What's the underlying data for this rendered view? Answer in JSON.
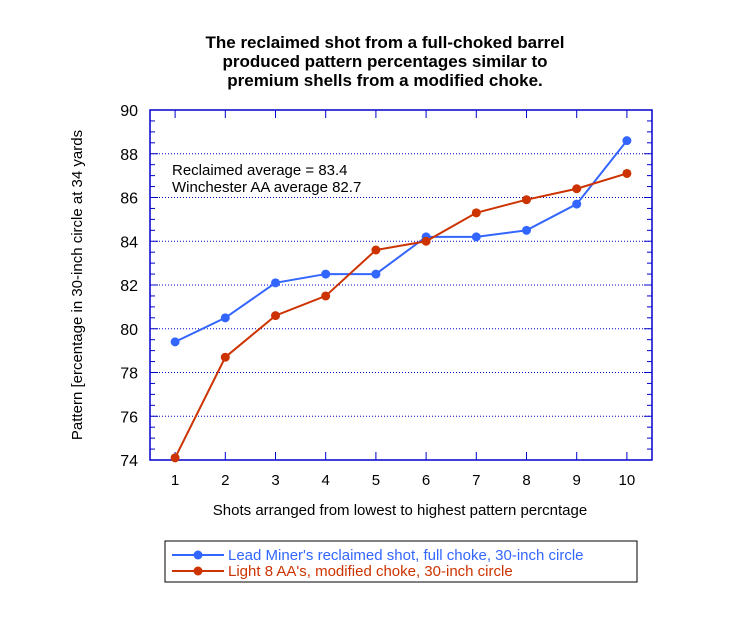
{
  "chart_data": {
    "type": "line",
    "title": [
      "The reclaimed shot from a full-choked barrel",
      "produced pattern percentages similar to",
      "premium shells from a modified choke."
    ],
    "xlabel": "Shots arranged from lowest to highest pattern percntage",
    "ylabel": "Pattern [ercentage in 30-inch circle at 34 yards",
    "x": [
      1,
      2,
      3,
      4,
      5,
      6,
      7,
      8,
      9,
      10
    ],
    "xlim": [
      0.5,
      10.5
    ],
    "ylim": [
      74,
      90
    ],
    "yticks": [
      74,
      76,
      78,
      80,
      82,
      84,
      86,
      88,
      90
    ],
    "grid": "horizontal dotted at major y ticks",
    "annotations": [
      "Reclaimed average = 83.4",
      "Winchester AA average 82.7"
    ],
    "legend_placement": "bottom",
    "series": [
      {
        "name": "Lead Miner's reclaimed shot, full choke, 30-inch circle",
        "color": "#3366ff",
        "values": [
          79.4,
          80.5,
          82.1,
          82.5,
          82.5,
          84.2,
          84.2,
          84.5,
          85.7,
          88.6
        ]
      },
      {
        "name": "Light 8 AA's, modified choke, 30-inch circle",
        "color": "#cc3300",
        "values": [
          74.1,
          78.7,
          80.6,
          81.5,
          83.6,
          84.0,
          85.3,
          85.9,
          86.4,
          87.1
        ]
      }
    ],
    "axis_color": "#0000cc"
  }
}
